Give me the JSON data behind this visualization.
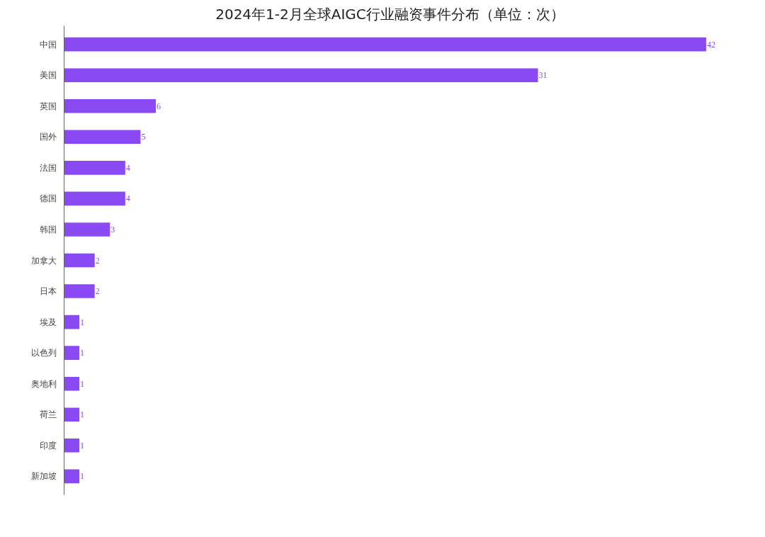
{
  "chart_data": {
    "type": "bar",
    "orientation": "horizontal",
    "title": "2024年1-2月全球AIGC行业融资事件分布（单位：次）",
    "categories": [
      "中国",
      "美国",
      "英国",
      "国外",
      "法国",
      "德国",
      "韩国",
      "加拿大",
      "日本",
      "埃及",
      "以色列",
      "奥地利",
      "荷兰",
      "印度",
      "新加坡"
    ],
    "values": [
      42,
      31,
      6,
      5,
      4,
      4,
      3,
      2,
      2,
      1,
      1,
      1,
      1,
      1,
      1
    ],
    "color": "#8a4af3",
    "data_labels": true
  }
}
